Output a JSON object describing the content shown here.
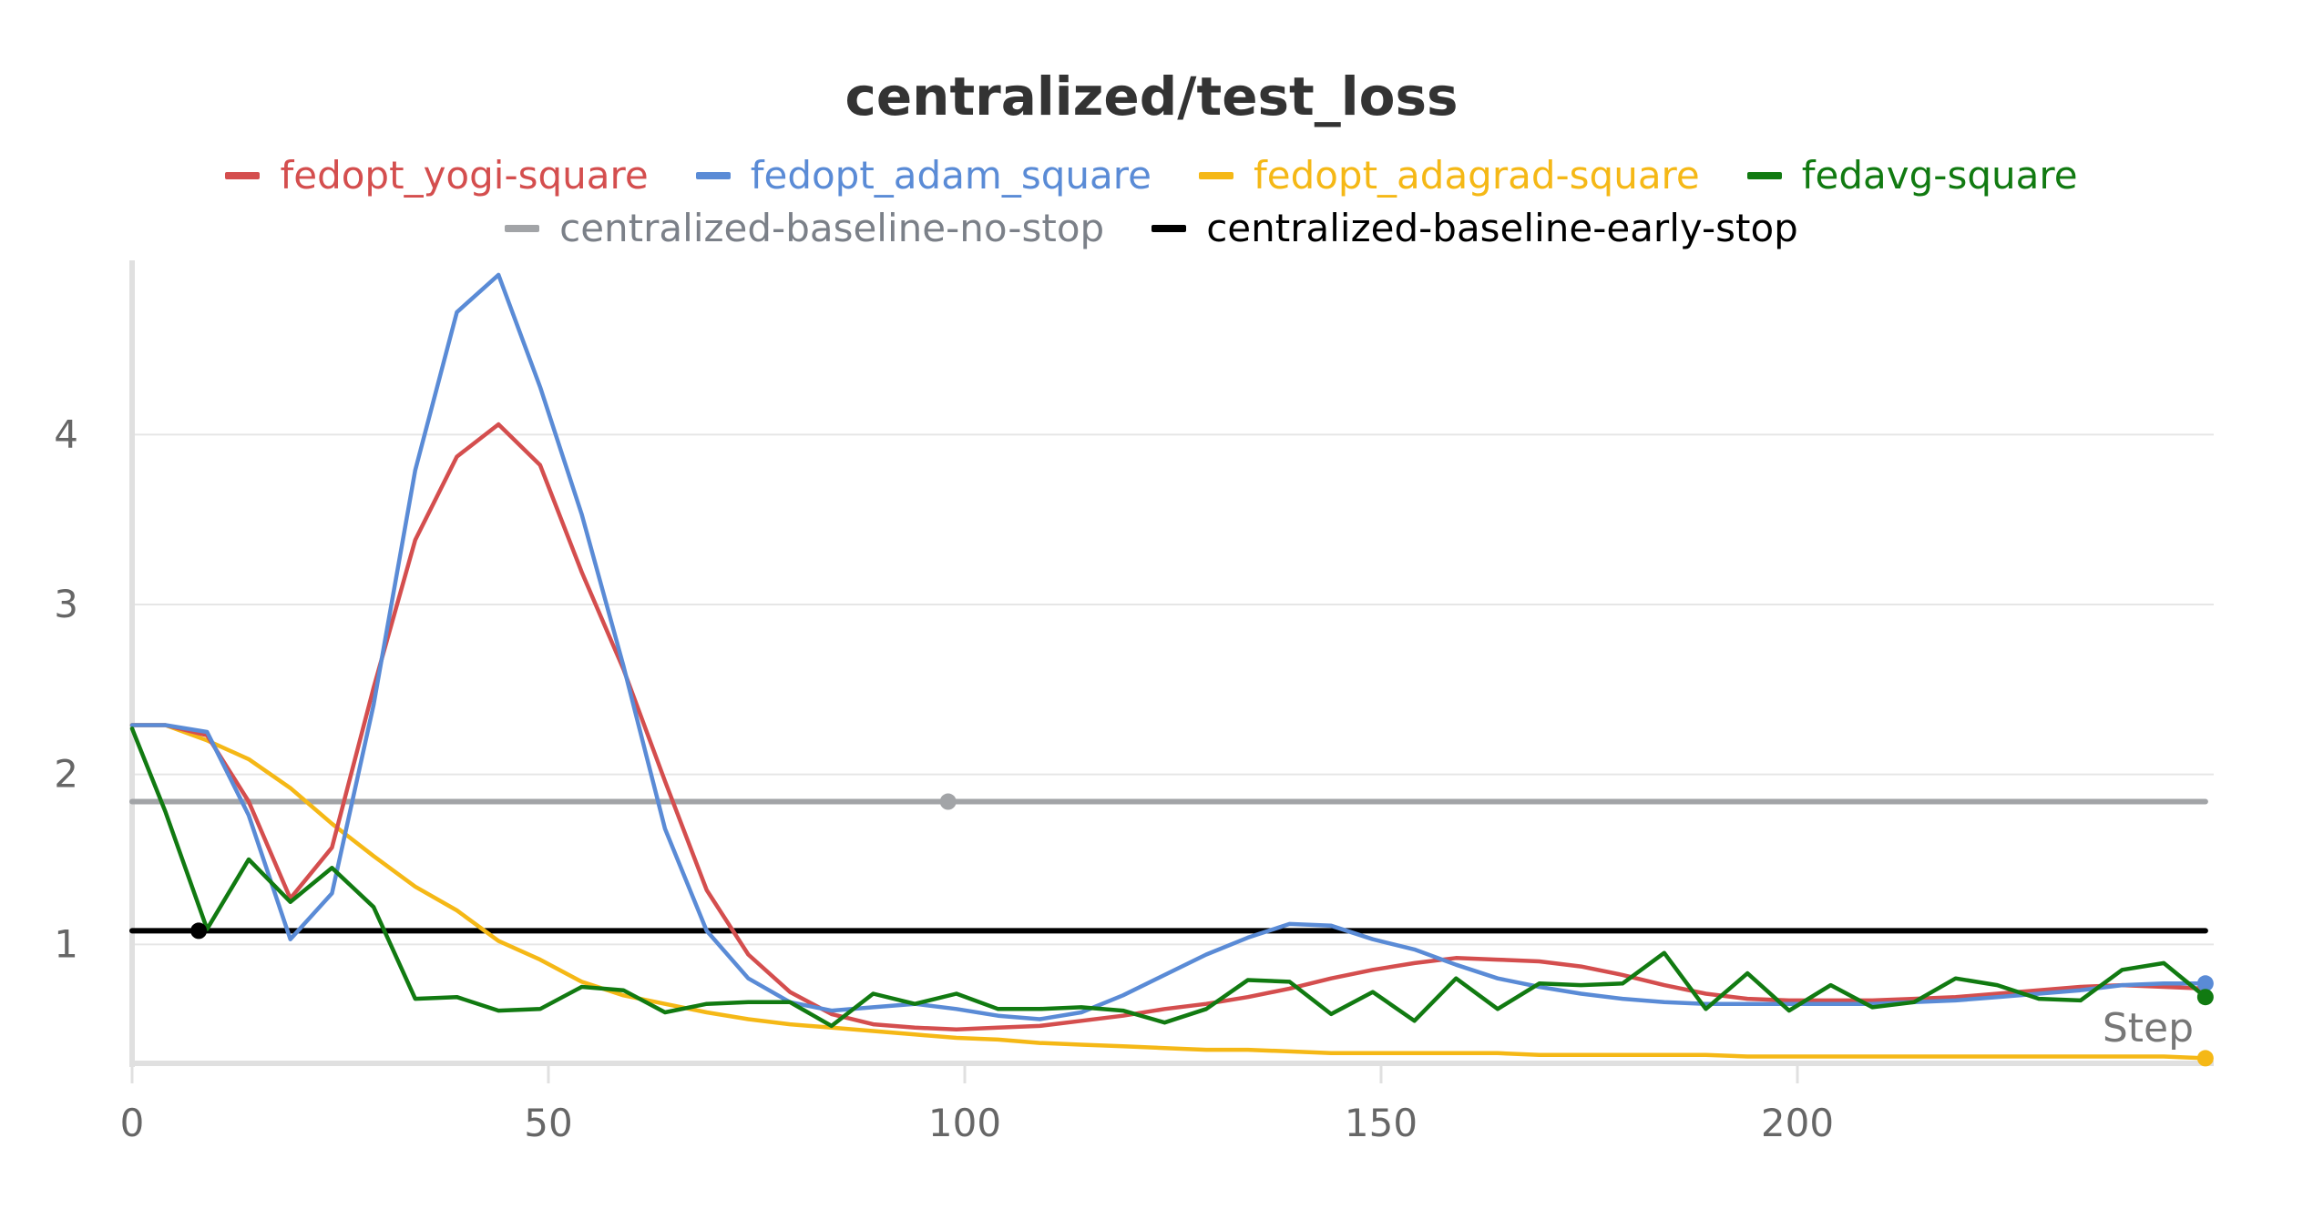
{
  "chart_data": {
    "type": "line",
    "title": "centralized/test_loss",
    "xlabel": "Step",
    "ylabel": "",
    "xlim": [
      0,
      250
    ],
    "ylim": [
      0.3,
      4.95
    ],
    "x_ticks": [
      0,
      50,
      100,
      150,
      200
    ],
    "y_ticks": [
      1,
      2,
      3,
      4
    ],
    "grid": "horizontal",
    "legend_position": "top-center",
    "series": [
      {
        "name": "fedopt_yogi-square",
        "color": "#d44e4e",
        "marker": "none",
        "x": [
          0,
          4,
          9,
          14,
          19,
          24,
          29,
          34,
          39,
          44,
          49,
          54,
          59,
          64,
          69,
          74,
          79,
          84,
          89,
          94,
          99,
          104,
          109,
          114,
          119,
          124,
          129,
          134,
          139,
          144,
          149,
          154,
          159,
          164,
          169,
          174,
          179,
          184,
          189,
          194,
          199,
          204,
          209,
          214,
          219,
          224,
          229,
          234,
          239,
          244,
          249
        ],
        "y": [
          2.29,
          2.29,
          2.23,
          1.84,
          1.27,
          1.57,
          2.51,
          3.38,
          3.87,
          4.06,
          3.82,
          3.19,
          2.62,
          1.96,
          1.32,
          0.94,
          0.72,
          0.59,
          0.53,
          0.51,
          0.5,
          0.51,
          0.52,
          0.55,
          0.58,
          0.62,
          0.65,
          0.69,
          0.74,
          0.8,
          0.85,
          0.89,
          0.92,
          0.91,
          0.9,
          0.87,
          0.82,
          0.76,
          0.71,
          0.68,
          0.67,
          0.67,
          0.67,
          0.68,
          0.69,
          0.71,
          0.73,
          0.75,
          0.76,
          0.75,
          0.74
        ]
      },
      {
        "name": "fedopt_adam_square",
        "color": "#5a8bd6",
        "marker": "circle-last",
        "x": [
          0,
          4,
          9,
          14,
          19,
          24,
          29,
          34,
          39,
          44,
          49,
          54,
          59,
          64,
          69,
          74,
          79,
          84,
          89,
          94,
          99,
          104,
          109,
          114,
          119,
          124,
          129,
          134,
          139,
          144,
          149,
          154,
          159,
          164,
          169,
          174,
          179,
          184,
          189,
          194,
          199,
          204,
          209,
          214,
          219,
          224,
          229,
          234,
          239,
          244,
          249
        ],
        "y": [
          2.29,
          2.29,
          2.25,
          1.76,
          1.03,
          1.3,
          2.41,
          3.79,
          4.72,
          4.94,
          4.28,
          3.53,
          2.64,
          1.68,
          1.08,
          0.8,
          0.66,
          0.61,
          0.63,
          0.65,
          0.62,
          0.58,
          0.56,
          0.6,
          0.7,
          0.82,
          0.94,
          1.04,
          1.12,
          1.11,
          1.03,
          0.97,
          0.88,
          0.8,
          0.75,
          0.71,
          0.68,
          0.66,
          0.65,
          0.65,
          0.65,
          0.65,
          0.65,
          0.66,
          0.67,
          0.69,
          0.71,
          0.73,
          0.76,
          0.77,
          0.77
        ]
      },
      {
        "name": "fedopt_adagrad-square",
        "color": "#f5b816",
        "marker": "circle-last",
        "x": [
          0,
          4,
          9,
          14,
          19,
          24,
          29,
          34,
          39,
          44,
          49,
          54,
          59,
          64,
          69,
          74,
          79,
          84,
          89,
          94,
          99,
          104,
          109,
          114,
          119,
          124,
          129,
          134,
          139,
          144,
          149,
          154,
          159,
          164,
          169,
          174,
          179,
          184,
          189,
          194,
          199,
          204,
          209,
          214,
          219,
          224,
          229,
          234,
          239,
          244,
          249
        ],
        "y": [
          2.29,
          2.29,
          2.2,
          2.09,
          1.92,
          1.71,
          1.52,
          1.34,
          1.2,
          1.02,
          0.91,
          0.78,
          0.7,
          0.65,
          0.6,
          0.56,
          0.53,
          0.51,
          0.49,
          0.47,
          0.45,
          0.44,
          0.42,
          0.41,
          0.4,
          0.39,
          0.38,
          0.38,
          0.37,
          0.36,
          0.36,
          0.36,
          0.36,
          0.36,
          0.35,
          0.35,
          0.35,
          0.35,
          0.35,
          0.34,
          0.34,
          0.34,
          0.34,
          0.34,
          0.34,
          0.34,
          0.34,
          0.34,
          0.34,
          0.34,
          0.33
        ]
      },
      {
        "name": "fedavg-square",
        "color": "#117a11",
        "marker": "circle-last",
        "x": [
          0,
          4,
          9,
          14,
          19,
          24,
          29,
          34,
          39,
          44,
          49,
          54,
          59,
          64,
          69,
          74,
          79,
          84,
          89,
          94,
          99,
          104,
          109,
          114,
          119,
          124,
          129,
          134,
          139,
          144,
          149,
          154,
          159,
          164,
          169,
          174,
          179,
          184,
          189,
          194,
          199,
          204,
          209,
          214,
          219,
          224,
          229,
          234,
          239,
          244,
          249
        ],
        "y": [
          2.27,
          1.78,
          1.09,
          1.5,
          1.25,
          1.45,
          1.22,
          0.68,
          0.69,
          0.61,
          0.62,
          0.75,
          0.73,
          0.6,
          0.65,
          0.66,
          0.66,
          0.52,
          0.71,
          0.65,
          0.71,
          0.62,
          0.62,
          0.63,
          0.61,
          0.54,
          0.62,
          0.79,
          0.78,
          0.59,
          0.72,
          0.55,
          0.8,
          0.62,
          0.77,
          0.76,
          0.77,
          0.95,
          0.62,
          0.83,
          0.61,
          0.76,
          0.63,
          0.66,
          0.8,
          0.76,
          0.68,
          0.67,
          0.85,
          0.89,
          0.69
        ]
      },
      {
        "name": "centralized-baseline-no-stop",
        "color": "#a2a4a7",
        "marker": "single-point",
        "x": [
          0,
          98,
          249
        ],
        "y": [
          1.84,
          1.84,
          1.84
        ]
      },
      {
        "name": "centralized-baseline-early-stop",
        "color": "#000000",
        "marker": "single-point",
        "x": [
          0,
          8,
          249
        ],
        "y": [
          1.08,
          1.08,
          1.08
        ]
      }
    ]
  }
}
